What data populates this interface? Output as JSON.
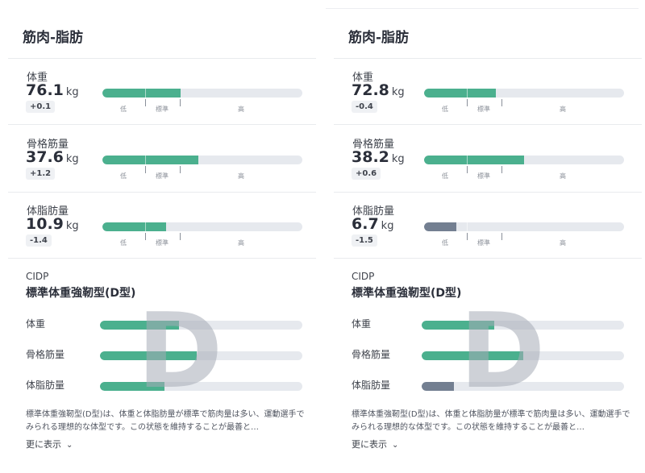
{
  "panels": [
    {
      "title": "筋肉-脂肪",
      "metrics": [
        {
          "label": "体重",
          "value": "76.1",
          "unit": "kg",
          "delta": "+0.1",
          "fill_pct": 39,
          "color": "#4bb08e"
        },
        {
          "label": "骨格筋量",
          "value": "37.6",
          "unit": "kg",
          "delta": "+1.2",
          "fill_pct": 48,
          "color": "#4bb08e"
        },
        {
          "label": "体脂肪量",
          "value": "10.9",
          "unit": "kg",
          "delta": "-1.4",
          "fill_pct": 32,
          "color": "#4bb08e"
        }
      ],
      "scale": {
        "low": "低",
        "std": "標準",
        "high": "高"
      },
      "cidp": {
        "label": "CIDP",
        "type": "標準体重強靭型(D型)",
        "letter": "D",
        "rows": [
          {
            "label": "体重",
            "fill_pct": 39,
            "color": "#4bb08e"
          },
          {
            "label": "骨格筋量",
            "fill_pct": 48,
            "color": "#4bb08e"
          },
          {
            "label": "体脂肪量",
            "fill_pct": 32,
            "color": "#4bb08e"
          }
        ]
      },
      "description": "標準体重強靭型(D型)は、体重と体脂肪量が標準で筋肉量は多い、運動選手でみられる理想的な体型です。この状態を維持することが最善と…",
      "more_label": "更に表示"
    },
    {
      "title": "筋肉-脂肪",
      "metrics": [
        {
          "label": "体重",
          "value": "72.8",
          "unit": "kg",
          "delta": "-0.4",
          "fill_pct": 36,
          "color": "#4bb08e"
        },
        {
          "label": "骨格筋量",
          "value": "38.2",
          "unit": "kg",
          "delta": "+0.6",
          "fill_pct": 50,
          "color": "#4bb08e"
        },
        {
          "label": "体脂肪量",
          "value": "6.7",
          "unit": "kg",
          "delta": "-1.5",
          "fill_pct": 16,
          "color": "#737f91"
        }
      ],
      "scale": {
        "low": "低",
        "std": "標準",
        "high": "高"
      },
      "cidp": {
        "label": "CIDP",
        "type": "標準体重強靭型(D型)",
        "letter": "D",
        "rows": [
          {
            "label": "体重",
            "fill_pct": 36,
            "color": "#4bb08e"
          },
          {
            "label": "骨格筋量",
            "fill_pct": 50,
            "color": "#4bb08e"
          },
          {
            "label": "体脂肪量",
            "fill_pct": 16,
            "color": "#737f91"
          }
        ]
      },
      "description": "標準体重強靭型(D型)は、体重と体脂肪量が標準で筋肉量は多い、運動選手でみられる理想的な体型です。この状態を維持することが最善と…",
      "more_label": "更に表示"
    }
  ]
}
